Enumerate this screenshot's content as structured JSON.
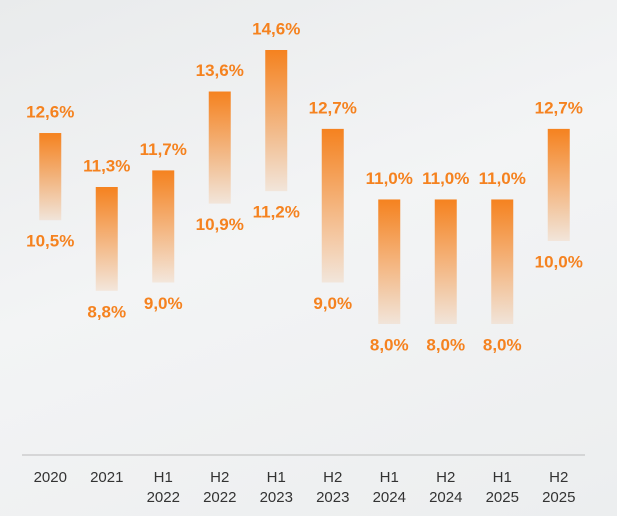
{
  "chart_data": {
    "type": "range-bar",
    "color": "#f5821f",
    "categories": [
      "2020",
      "2021",
      "H1 2022",
      "H2 2022",
      "H1 2023",
      "H2 2023",
      "H1 2024",
      "H2 2024",
      "H1 2025",
      "H2 2025"
    ],
    "series": [
      {
        "values": [
          12.6,
          11.3,
          11.7,
          13.6,
          14.6,
          12.7,
          11.0,
          11.0,
          11.0,
          12.7
        ],
        "value_labels": [
          "12,6%",
          "11,3%",
          "11,7%",
          "13,6%",
          "14,6%",
          "12,7%",
          "11,0%",
          "11,0%",
          "11,0%",
          "12,7%"
        ]
      },
      {
        "values": [
          10.5,
          8.8,
          9.0,
          10.9,
          11.2,
          9.0,
          8.0,
          8.0,
          8.0,
          10.0
        ],
        "value_labels": [
          "10,5%",
          "8,8%",
          "9,0%",
          "10,9%",
          "11,2%",
          "9,0%",
          "8,0%",
          "8,0%",
          "8,0%",
          "10,0%"
        ]
      }
    ]
  }
}
